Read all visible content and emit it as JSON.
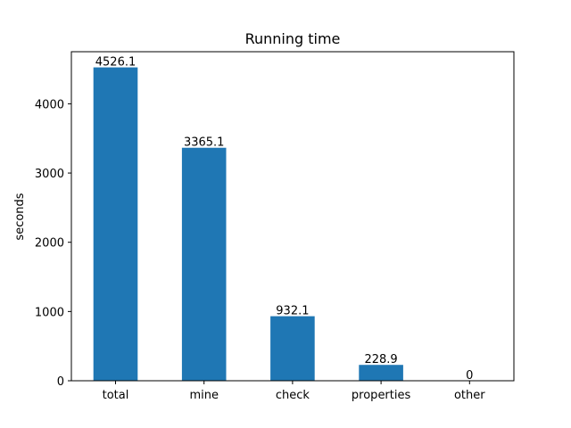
{
  "chart_data": {
    "type": "bar",
    "title": "Running time",
    "xlabel": "",
    "ylabel": "seconds",
    "categories": [
      "total",
      "mine",
      "check",
      "properties",
      "other"
    ],
    "values": [
      4526.1,
      3365.1,
      932.1,
      228.9,
      0
    ],
    "value_labels": [
      "4526.1",
      "3365.1",
      "932.1",
      "228.9",
      "0"
    ],
    "ylim": [
      0,
      4752.4
    ],
    "yticks": [
      0,
      1000,
      2000,
      3000,
      4000
    ],
    "ytick_labels": [
      "0",
      "1000",
      "2000",
      "3000",
      "4000"
    ],
    "grid": false,
    "legend": "none",
    "bar_color": "#1f77b4"
  }
}
